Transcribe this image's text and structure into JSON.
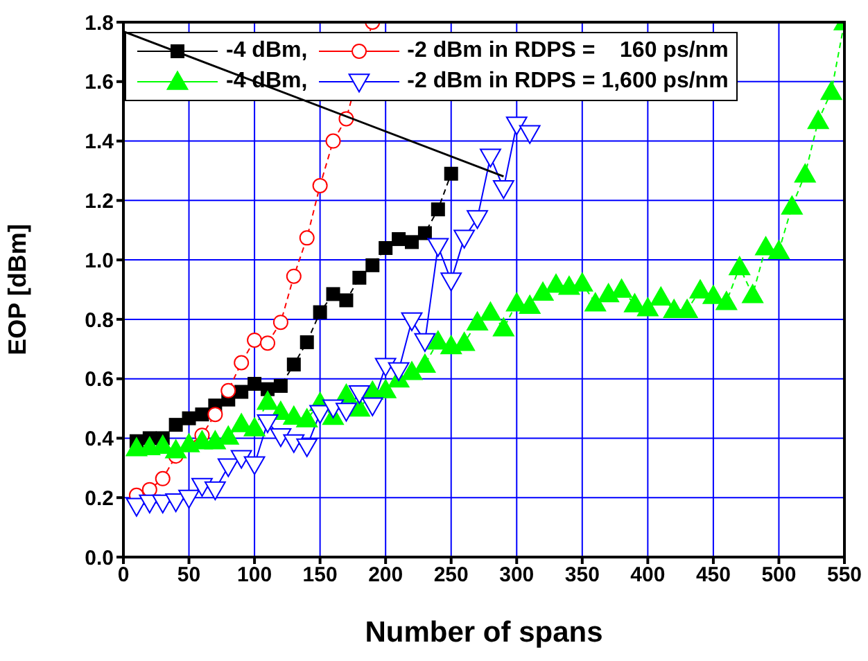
{
  "chart_data": {
    "type": "line",
    "xlabel": "Number of spans",
    "ylabel": "EOP [dBm]",
    "xlim": [
      0,
      550
    ],
    "xticks": [
      0,
      50,
      100,
      150,
      200,
      250,
      300,
      350,
      400,
      450,
      500,
      550
    ],
    "ylim": [
      0,
      1.8
    ],
    "yticks": [
      {
        "value": 0,
        "label": "0.0"
      },
      {
        "value": 0.2,
        "label": "0.2"
      },
      {
        "value": 0.4,
        "label": "0.4"
      },
      {
        "value": 0.6,
        "label": "0.6"
      },
      {
        "value": 0.8,
        "label": "0.8"
      },
      {
        "value": 1,
        "label": "1.0"
      },
      {
        "value": 1.2,
        "label": "1.2"
      },
      {
        "value": 1.4,
        "label": "1.4"
      },
      {
        "value": 1.6,
        "label": "1.6"
      },
      {
        "value": 1.8,
        "label": "1.8"
      }
    ],
    "grid": true,
    "legend": "top left",
    "series": [
      {
        "name": "-4 dBm,",
        "color": "#000000",
        "marker": "square",
        "line_style": "dashed",
        "x": [
          10,
          20,
          30,
          40,
          50,
          60,
          70,
          80,
          90,
          100,
          110,
          120,
          130,
          140,
          150,
          160,
          170,
          180,
          190,
          200,
          210,
          220,
          230,
          240,
          250
        ],
        "values": [
          0.39,
          0.4,
          0.4,
          0.445,
          0.467,
          0.48,
          0.51,
          0.53,
          0.556,
          0.583,
          0.565,
          0.576,
          0.648,
          0.723,
          0.824,
          0.885,
          0.864,
          0.94,
          0.982,
          1.04,
          1.07,
          1.06,
          1.09,
          1.17,
          1.29
        ]
      },
      {
        "name": "-2 dBm in RDPS =    160 ps/nm",
        "color": "#ff0000",
        "marker": "circle",
        "line_style": "dashed",
        "x": [
          10,
          20,
          30,
          40,
          60,
          70,
          80,
          90,
          100,
          110,
          120,
          130,
          140,
          150,
          160,
          170,
          190
        ],
        "values": [
          0.208,
          0.227,
          0.264,
          0.34,
          0.41,
          0.48,
          0.56,
          0.654,
          0.73,
          0.72,
          0.79,
          0.945,
          1.074,
          1.25,
          1.4,
          1.475,
          1.8
        ]
      },
      {
        "name": "-4 dBm,",
        "color": "#00ff00",
        "marker": "triangle",
        "line_style": "dashed",
        "x": [
          10,
          20,
          30,
          40,
          50,
          60,
          70,
          80,
          90,
          100,
          110,
          120,
          130,
          140,
          150,
          160,
          170,
          180,
          190,
          200,
          210,
          220,
          230,
          240,
          250,
          260,
          270,
          280,
          290,
          300,
          310,
          320,
          330,
          340,
          350,
          360,
          370,
          380,
          390,
          400,
          410,
          420,
          430,
          440,
          450,
          460,
          470,
          480,
          490,
          500,
          510,
          520,
          530,
          540,
          550
        ],
        "values": [
          0.367,
          0.37,
          0.375,
          0.36,
          0.38,
          0.39,
          0.39,
          0.406,
          0.448,
          0.434,
          0.523,
          0.489,
          0.473,
          0.464,
          0.519,
          0.472,
          0.547,
          0.5,
          0.557,
          0.562,
          0.598,
          0.623,
          0.648,
          0.726,
          0.71,
          0.721,
          0.79,
          0.823,
          0.77,
          0.854,
          0.846,
          0.89,
          0.917,
          0.91,
          0.921,
          0.854,
          0.885,
          0.9,
          0.851,
          0.838,
          0.874,
          0.832,
          0.832,
          0.898,
          0.879,
          0.859,
          0.976,
          0.882,
          1.043,
          1.03,
          1.18,
          1.288,
          1.468,
          1.566,
          1.8
        ]
      },
      {
        "type": "line",
        "color": "#000000",
        "marker": "none",
        "line_style": "solid",
        "x": [
          0,
          290
        ],
        "values": [
          1.769,
          1.281
        ]
      },
      {
        "name": "-2 dBm in RDPS = 1,600 ps/nm",
        "color": "#0000ff",
        "marker": "triangle-down",
        "line_style": "solid",
        "x": [
          10,
          20,
          30,
          40,
          50,
          60,
          70,
          80,
          90,
          100,
          110,
          120,
          130,
          140,
          150,
          160,
          170,
          180,
          190,
          200,
          210,
          220,
          230,
          240,
          250,
          260,
          270,
          280,
          290,
          300,
          310
        ],
        "values": [
          0.172,
          0.183,
          0.183,
          0.187,
          0.199,
          0.239,
          0.227,
          0.305,
          0.333,
          0.312,
          0.453,
          0.406,
          0.386,
          0.372,
          0.484,
          0.503,
          0.492,
          0.551,
          0.51,
          0.643,
          0.628,
          0.796,
          0.726,
          1.046,
          0.93,
          1.074,
          1.14,
          1.347,
          1.241,
          1.455,
          1.426
        ]
      }
    ]
  }
}
